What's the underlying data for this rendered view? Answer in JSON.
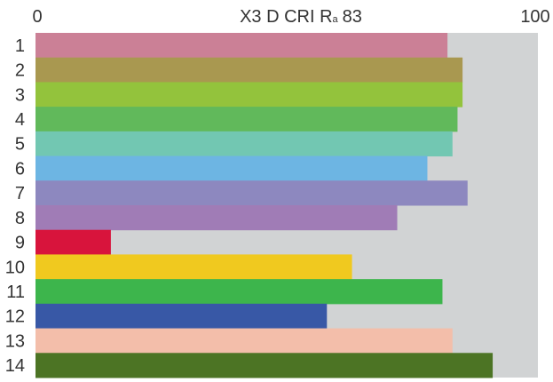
{
  "chart_data": {
    "type": "bar",
    "orientation": "horizontal",
    "title": {
      "prefix": "X3 D CRI R",
      "subscript": "a",
      "value": "83"
    },
    "xlim": [
      0,
      100
    ],
    "x_ticks": [
      "0",
      "100"
    ],
    "categories": [
      "1",
      "2",
      "3",
      "4",
      "5",
      "6",
      "7",
      "8",
      "9",
      "10",
      "11",
      "12",
      "13",
      "14"
    ],
    "values": [
      82,
      85,
      85,
      84,
      83,
      78,
      86,
      72,
      15,
      63,
      81,
      58,
      83,
      91
    ],
    "colors": [
      "#cb8096",
      "#a99850",
      "#93c33c",
      "#61b95b",
      "#72c7b2",
      "#6db5e3",
      "#8d88bf",
      "#a07cb6",
      "#d8143c",
      "#f0c91f",
      "#3db54c",
      "#3858a6",
      "#f3beaa",
      "#4c7424"
    ],
    "track_color": "#d1d3d4",
    "grid": false,
    "legend": "none"
  }
}
